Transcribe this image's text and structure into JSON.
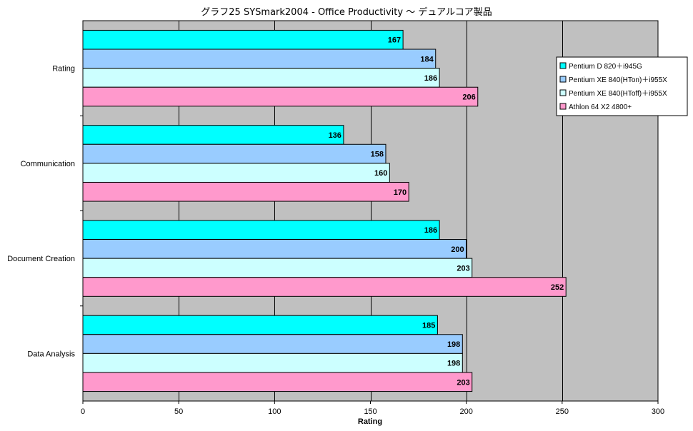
{
  "chart_data": {
    "type": "bar",
    "orientation": "horizontal",
    "title": "グラフ25  SYSmark2004 - Office Productivity ～ デュアルコア製品",
    "xlabel": "Rating",
    "ylabel": "",
    "xlim": [
      0,
      300
    ],
    "x_ticks": [
      0,
      50,
      100,
      150,
      200,
      250,
      300
    ],
    "grid": true,
    "legend_position": "right",
    "categories": [
      "Rating",
      "Communication",
      "Document Creation",
      "Data Analysis"
    ],
    "series": [
      {
        "name": "Pentium D 820＋i945G",
        "color": "#00FFFF",
        "values": [
          167,
          136,
          186,
          185
        ]
      },
      {
        "name": "Pentium XE 840(HTon)＋i955X",
        "color": "#99CCFF",
        "values": [
          184,
          158,
          200,
          198
        ]
      },
      {
        "name": "Pentium XE 840(HToff)＋i955X",
        "color": "#CCFFFF",
        "values": [
          186,
          160,
          203,
          198
        ]
      },
      {
        "name": "Athlon 64 X2 4800+",
        "color": "#FF99CC",
        "values": [
          206,
          170,
          252,
          203
        ]
      }
    ],
    "plot_background": "#C0C0C0"
  }
}
